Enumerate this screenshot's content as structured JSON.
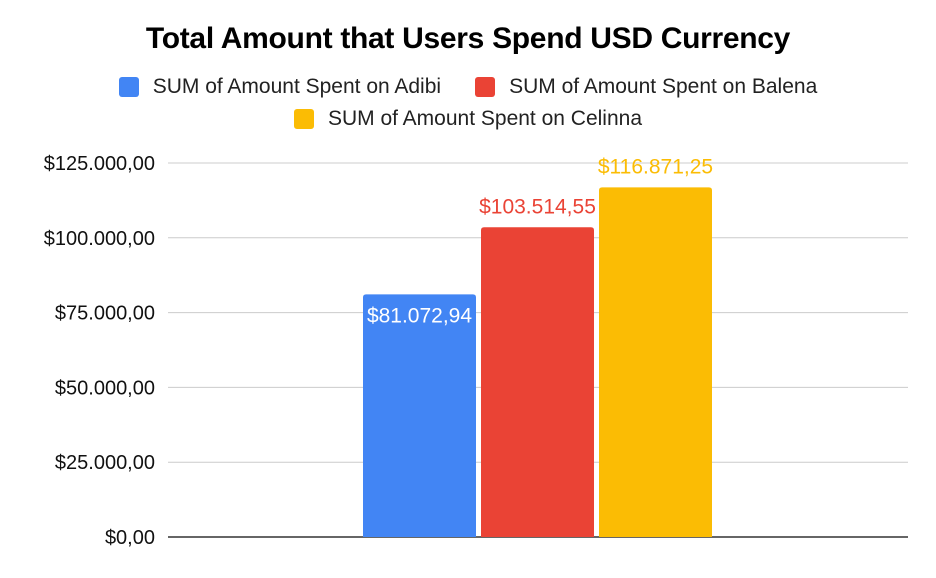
{
  "chart_data": {
    "type": "bar",
    "title": "Total Amount that Users Spend USD Currency",
    "xlabel": "",
    "ylabel": "",
    "ylim": [
      0,
      125000
    ],
    "yticks": [
      0,
      25000,
      50000,
      75000,
      100000,
      125000
    ],
    "ytick_labels": [
      "$0,00",
      "$25.000,00",
      "$50.000,00",
      "$75.000,00",
      "$100.000,00",
      "$125.000,00"
    ],
    "grid": true,
    "legend_position": "top",
    "series": [
      {
        "name": "SUM of Amount Spent on Adibi",
        "value": 81072.94,
        "label": "$81.072,94",
        "color": "#4285f4",
        "label_color": "#ffffff"
      },
      {
        "name": "SUM of Amount Spent on Balena",
        "value": 103514.55,
        "label": "$103.514,55",
        "color": "#ea4335",
        "label_color": "#ea4335"
      },
      {
        "name": "SUM of Amount Spent on Celinna",
        "value": 116871.25,
        "label": "$116.871,25",
        "color": "#fbbc04",
        "label_color": "#fbbc04"
      }
    ]
  }
}
